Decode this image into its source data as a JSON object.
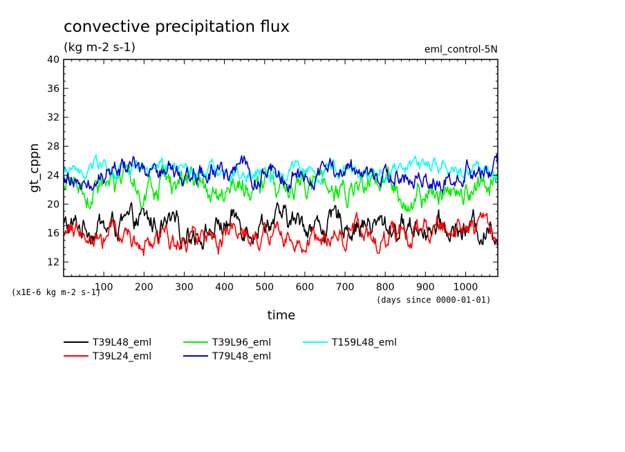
{
  "chart_data": {
    "type": "line",
    "title": "convective precipitation flux",
    "units": "(kg m-2 s-1)",
    "experiment": "eml_control-5N",
    "ylabel": "gt_cppn",
    "xlabel": "time",
    "y_scale_note": "(x1E-6 kg m-2 s-1)",
    "x_units_note": "(days since 0000-01-01)",
    "xlim": [
      0,
      1080
    ],
    "ylim": [
      10,
      40
    ],
    "x_ticks": [
      100,
      200,
      300,
      400,
      500,
      600,
      700,
      800,
      900,
      1000
    ],
    "y_ticks": [
      12,
      16,
      20,
      24,
      28,
      32,
      36,
      40
    ],
    "grid": false,
    "legend_position": "below",
    "series": [
      {
        "name": "T39L48_eml",
        "color": "#000000",
        "mean": 17.0,
        "amplitude": 2.0
      },
      {
        "name": "T39L96_eml",
        "color": "#00ee00",
        "mean": 22.2,
        "amplitude": 2.0
      },
      {
        "name": "T159L48_eml",
        "color": "#00ffff",
        "mean": 24.6,
        "amplitude": 1.2
      },
      {
        "name": "T39L24_eml",
        "color": "#ff0000",
        "mean": 15.8,
        "amplitude": 1.8
      },
      {
        "name": "T79L48_eml",
        "color": "#0000cc",
        "mean": 24.4,
        "amplitude": 1.6
      }
    ]
  }
}
